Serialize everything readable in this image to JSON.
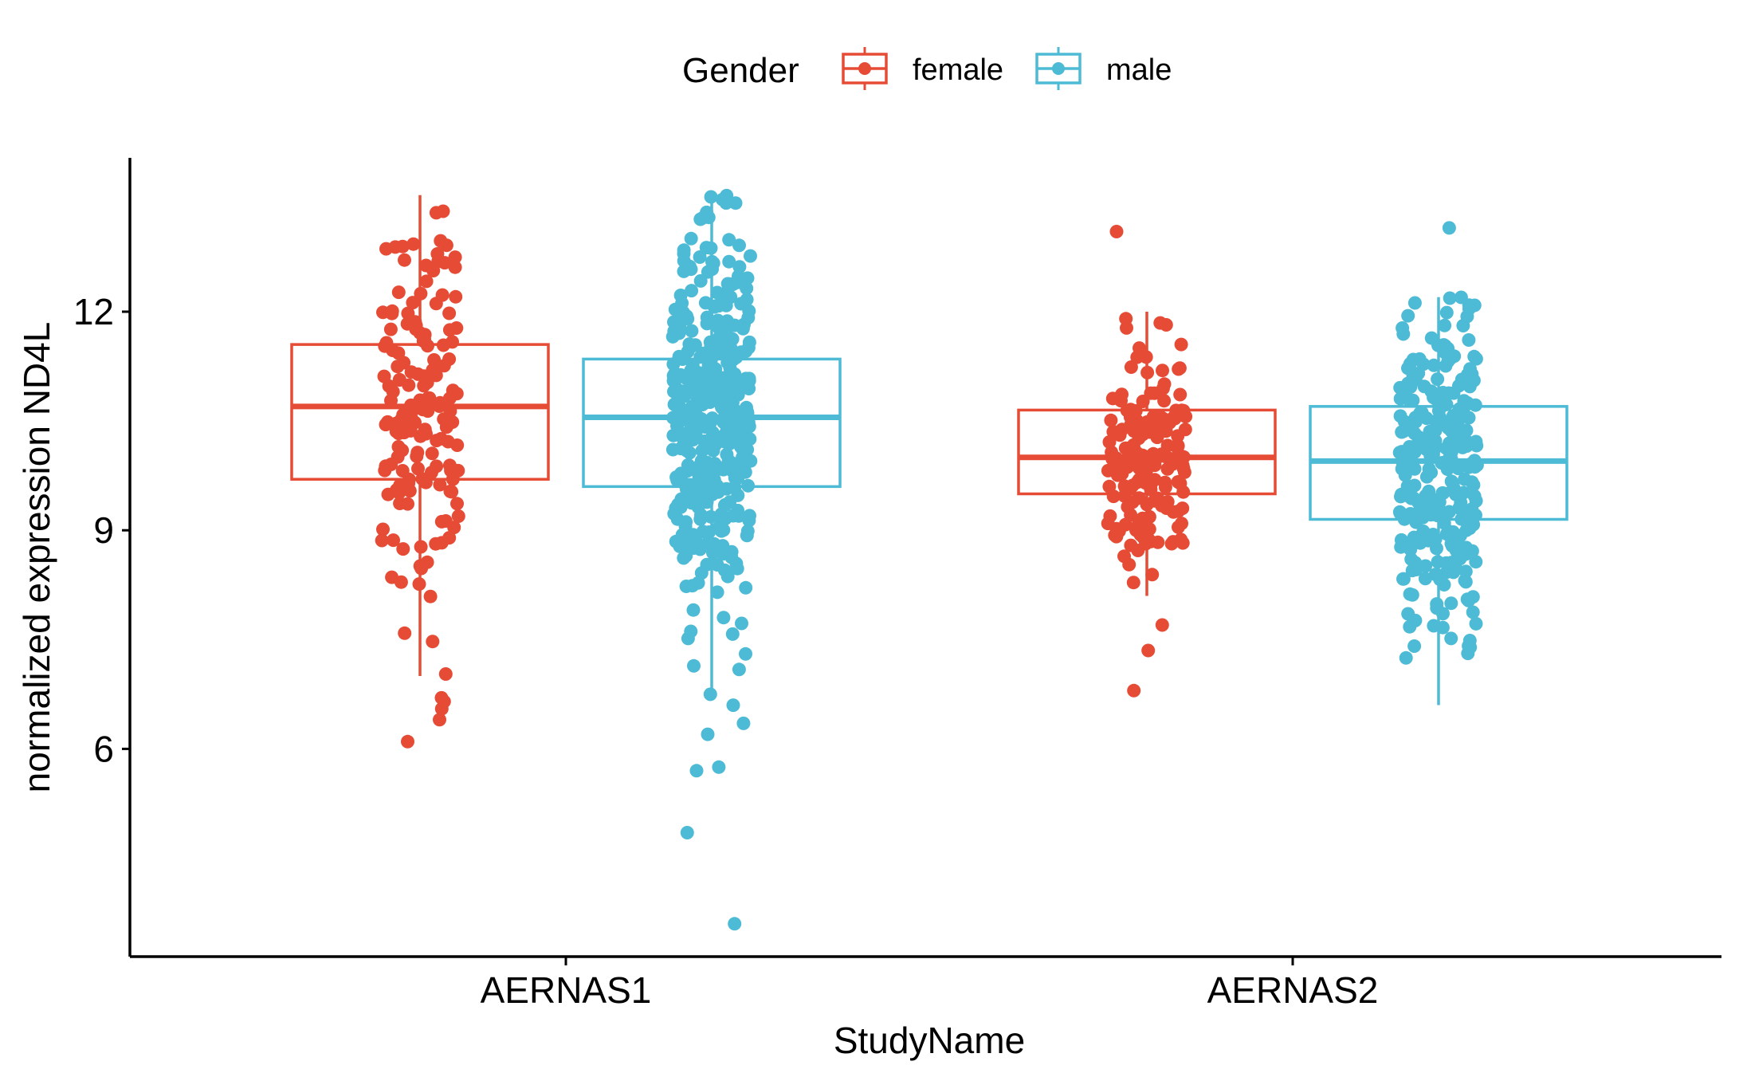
{
  "chart_data": {
    "type": "boxplot",
    "title": "",
    "xlabel": "StudyName",
    "ylabel": "normalized expression ND4L",
    "categories": [
      "AERNAS1",
      "AERNAS2"
    ],
    "ylim": [
      3.1,
      14.1
    ],
    "yticks": [
      6,
      9,
      12
    ],
    "grid": false,
    "legend": {
      "title": "Gender",
      "position": "top",
      "entries": [
        {
          "name": "female",
          "color": "#E64B35"
        },
        {
          "name": "male",
          "color": "#4DBBD5"
        }
      ]
    },
    "series": [
      {
        "name": "female",
        "color": "#E64B35",
        "boxes": [
          {
            "category": "AERNAS1",
            "whisker_low": 7.0,
            "q1": 9.7,
            "median": 10.7,
            "q3": 11.55,
            "whisker_high": 13.6,
            "n_points": 160,
            "outliers": [
              6.7,
              6.65,
              6.55,
              6.4,
              6.1
            ]
          },
          {
            "category": "AERNAS2",
            "whisker_low": 8.1,
            "q1": 9.5,
            "median": 10.0,
            "q3": 10.65,
            "whisker_high": 12.0,
            "n_points": 170,
            "outliers": [
              13.1,
              7.7,
              7.35,
              6.8
            ]
          }
        ]
      },
      {
        "name": "male",
        "color": "#4DBBD5",
        "boxes": [
          {
            "category": "AERNAS1",
            "whisker_low": 6.8,
            "q1": 9.6,
            "median": 10.55,
            "q3": 11.35,
            "whisker_high": 13.6,
            "n_points": 420,
            "outliers": [
              6.75,
              6.6,
              6.35,
              6.2,
              5.75,
              5.7,
              4.85,
              3.6
            ]
          },
          {
            "category": "AERNAS2",
            "whisker_low": 6.6,
            "q1": 9.15,
            "median": 9.95,
            "q3": 10.7,
            "whisker_high": 12.2,
            "n_points": 290,
            "outliers": [
              13.15
            ]
          }
        ]
      }
    ]
  }
}
